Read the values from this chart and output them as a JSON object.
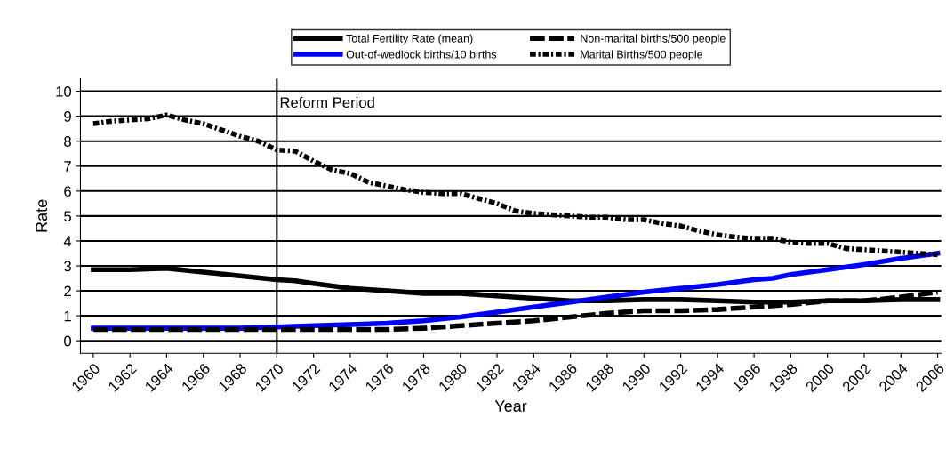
{
  "chart_data": {
    "type": "line",
    "xlabel": "Year",
    "ylabel": "Rate",
    "xlim": [
      1959.3,
      2006.2
    ],
    "ylim": [
      -0.5,
      10.5
    ],
    "xticks": [
      1960,
      1962,
      1964,
      1966,
      1968,
      1970,
      1972,
      1974,
      1976,
      1978,
      1980,
      1982,
      1984,
      1986,
      1988,
      1990,
      1992,
      1994,
      1996,
      1998,
      2000,
      2002,
      2004,
      2006
    ],
    "yticks": [
      0,
      1,
      2,
      3,
      4,
      5,
      6,
      7,
      8,
      9,
      10
    ],
    "grid": "y",
    "legend": "top",
    "ref_lines": [
      {
        "axis": "x",
        "value": 1970,
        "label": "Reform Period",
        "color": "#000000",
        "line_style": "solid"
      }
    ],
    "series": [
      {
        "name": "Total Fertility Rate (mean)",
        "color": "#000000",
        "line_style": "solid",
        "x": [
          1960,
          1962,
          1964,
          1966,
          1968,
          1970,
          1971,
          1972,
          1973,
          1974,
          1976,
          1978,
          1980,
          1982,
          1984,
          1986,
          1988,
          1990,
          1992,
          1994,
          1996,
          1998,
          2000,
          2002,
          2004,
          2006
        ],
        "values": [
          2.85,
          2.85,
          2.9,
          2.75,
          2.6,
          2.45,
          2.4,
          2.3,
          2.2,
          2.1,
          2.0,
          1.9,
          1.9,
          1.8,
          1.7,
          1.6,
          1.6,
          1.65,
          1.65,
          1.6,
          1.55,
          1.55,
          1.6,
          1.6,
          1.65,
          1.65
        ]
      },
      {
        "name": "Out-of-wedlock births/10 births",
        "color": "#0000ff",
        "line_style": "solid",
        "x": [
          1960,
          1962,
          1964,
          1966,
          1968,
          1970,
          1972,
          1974,
          1976,
          1978,
          1980,
          1982,
          1984,
          1986,
          1988,
          1990,
          1992,
          1994,
          1996,
          1997,
          1998,
          2000,
          2002,
          2004,
          2006
        ],
        "values": [
          0.5,
          0.5,
          0.5,
          0.5,
          0.5,
          0.55,
          0.6,
          0.65,
          0.7,
          0.8,
          0.95,
          1.15,
          1.35,
          1.55,
          1.75,
          1.95,
          2.1,
          2.25,
          2.45,
          2.5,
          2.65,
          2.85,
          3.05,
          3.3,
          3.5
        ]
      },
      {
        "name": "Non-marital births/500 people",
        "color": "#000000",
        "line_style": "dashed",
        "x": [
          1960,
          1962,
          1964,
          1966,
          1968,
          1970,
          1972,
          1974,
          1976,
          1978,
          1980,
          1982,
          1984,
          1986,
          1988,
          1990,
          1992,
          1994,
          1996,
          1998,
          2000,
          2002,
          2004,
          2006
        ],
        "values": [
          0.45,
          0.45,
          0.45,
          0.45,
          0.45,
          0.45,
          0.45,
          0.45,
          0.45,
          0.5,
          0.6,
          0.7,
          0.8,
          0.95,
          1.1,
          1.2,
          1.2,
          1.25,
          1.35,
          1.45,
          1.6,
          1.6,
          1.75,
          1.95
        ]
      },
      {
        "name": "Marital Births/500 people",
        "color": "#000000",
        "line_style": "dotted",
        "x": [
          1960,
          1961,
          1962,
          1963,
          1964,
          1965,
          1966,
          1967,
          1968,
          1969,
          1970,
          1971,
          1972,
          1973,
          1974,
          1975,
          1976,
          1977,
          1978,
          1979,
          1980,
          1981,
          1982,
          1983,
          1984,
          1985,
          1986,
          1987,
          1988,
          1989,
          1990,
          1991,
          1992,
          1993,
          1994,
          1995,
          1996,
          1997,
          1998,
          1999,
          2000,
          2001,
          2002,
          2003,
          2004,
          2005,
          2006
        ],
        "values": [
          8.7,
          8.8,
          8.85,
          8.9,
          9.05,
          8.85,
          8.7,
          8.45,
          8.2,
          8.0,
          7.65,
          7.6,
          7.2,
          6.85,
          6.7,
          6.35,
          6.2,
          6.05,
          5.95,
          5.9,
          5.9,
          5.7,
          5.5,
          5.2,
          5.1,
          5.05,
          5.0,
          4.95,
          4.95,
          4.85,
          4.85,
          4.7,
          4.6,
          4.4,
          4.25,
          4.15,
          4.1,
          4.1,
          3.95,
          3.9,
          3.9,
          3.7,
          3.65,
          3.6,
          3.55,
          3.5,
          3.45
        ]
      }
    ]
  }
}
